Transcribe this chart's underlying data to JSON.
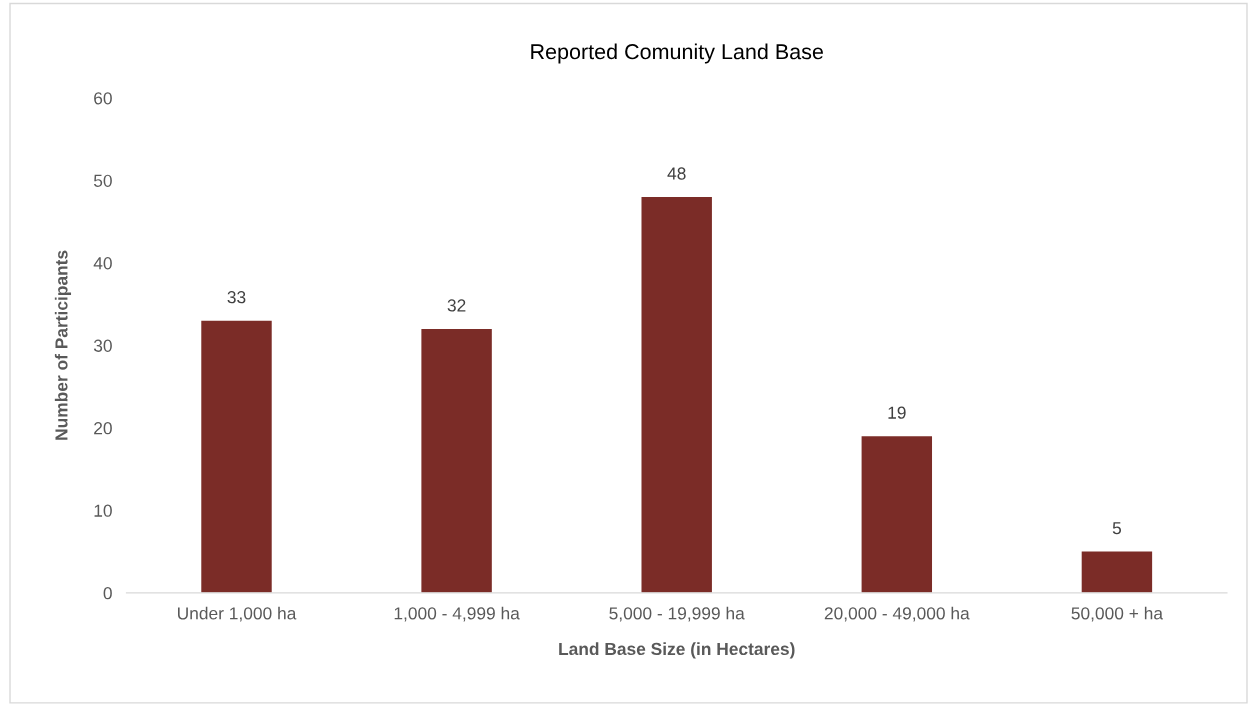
{
  "chart_data": {
    "type": "bar",
    "title": "Reported Comunity Land Base",
    "xlabel": "Land Base Size (in Hectares)",
    "ylabel": "Number of Participants",
    "categories": [
      "Under 1,000 ha",
      "1,000 - 4,999 ha",
      "5,000 - 19,999 ha",
      "20,000 - 49,000 ha",
      "50,000 + ha"
    ],
    "values": [
      33,
      32,
      48,
      19,
      5
    ],
    "color": "#7b2c27",
    "ylim": [
      0,
      60
    ],
    "yticks": [
      0,
      10,
      20,
      30,
      40,
      50,
      60
    ],
    "grid": false,
    "data_labels": true
  }
}
